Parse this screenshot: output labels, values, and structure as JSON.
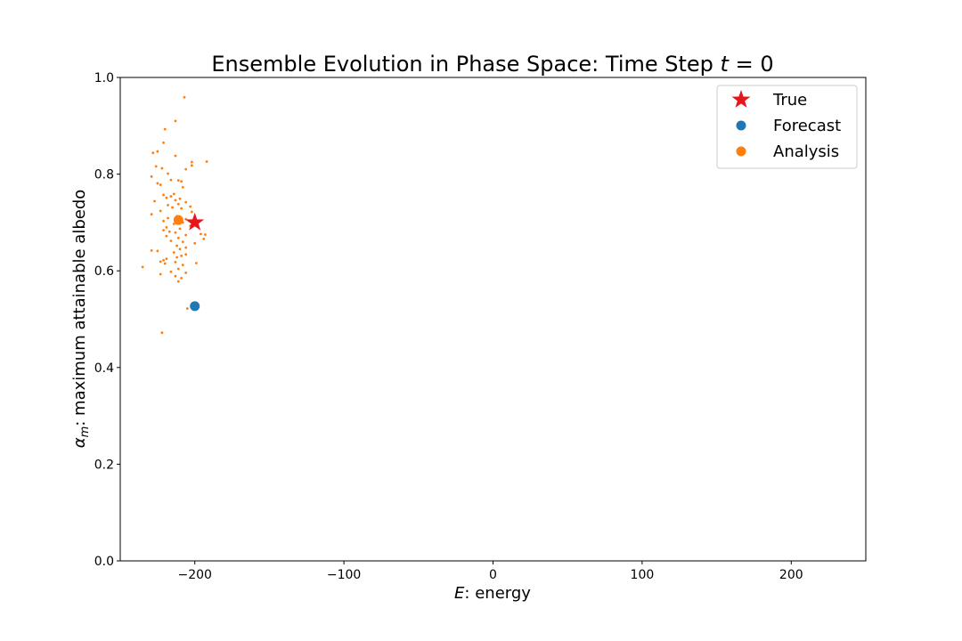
{
  "chart_data": {
    "type": "scatter",
    "title": "Ensemble Evolution in Phase Space: Time Step t = 0",
    "title_parts": {
      "prefix": "Ensemble Evolution in Phase Space: Time Step ",
      "var": "t",
      "suffix": " = 0"
    },
    "xlabel": "E: energy",
    "xlabel_parts": {
      "var": "E",
      "rest": ": energy"
    },
    "ylabel": "αm: maximum attainable albedo",
    "ylabel_parts": {
      "var": "α",
      "sub": "m",
      "rest": ": maximum attainable albedo"
    },
    "xlim": [
      -250,
      250
    ],
    "ylim": [
      0.0,
      1.0
    ],
    "xticks": [
      -200,
      -100,
      0,
      100,
      200
    ],
    "xtick_labels": [
      "−200",
      "−100",
      "0",
      "100",
      "200"
    ],
    "yticks": [
      0.0,
      0.2,
      0.4,
      0.6,
      0.8,
      1.0
    ],
    "ytick_labels": [
      "0.0",
      "0.2",
      "0.4",
      "0.6",
      "0.8",
      "1.0"
    ],
    "grid": false,
    "legend_position": "top-right",
    "colors": {
      "true": "#e8161b",
      "forecast": "#1f77b4",
      "analysis": "#ff7f0e"
    },
    "series": [
      {
        "name": "True",
        "marker": "star",
        "color": "#e8161b",
        "points": [
          {
            "x": -200,
            "y": 0.7
          }
        ]
      },
      {
        "name": "Forecast",
        "marker": "circle",
        "color": "#1f77b4",
        "points": [
          {
            "x": -200,
            "y": 0.527
          }
        ]
      },
      {
        "name": "Analysis",
        "marker": "circle",
        "color": "#ff7f0e",
        "points": [
          {
            "x": -211,
            "y": 0.705
          }
        ]
      },
      {
        "name": "",
        "marker": "dot",
        "color": "#ff7f0e",
        "points": [
          {
            "x": -207,
            "y": 0.959
          },
          {
            "x": -213,
            "y": 0.91
          },
          {
            "x": -220,
            "y": 0.893
          },
          {
            "x": -221,
            "y": 0.865
          },
          {
            "x": -225,
            "y": 0.847
          },
          {
            "x": -228,
            "y": 0.844
          },
          {
            "x": -213,
            "y": 0.838
          },
          {
            "x": -192,
            "y": 0.826
          },
          {
            "x": -202,
            "y": 0.825
          },
          {
            "x": -202,
            "y": 0.818
          },
          {
            "x": -226,
            "y": 0.816
          },
          {
            "x": -222,
            "y": 0.812
          },
          {
            "x": -206,
            "y": 0.81
          },
          {
            "x": -218,
            "y": 0.801
          },
          {
            "x": -229,
            "y": 0.795
          },
          {
            "x": -216,
            "y": 0.788
          },
          {
            "x": -211,
            "y": 0.787
          },
          {
            "x": -209,
            "y": 0.785
          },
          {
            "x": -225,
            "y": 0.781
          },
          {
            "x": -223,
            "y": 0.778
          },
          {
            "x": -208,
            "y": 0.773
          },
          {
            "x": -214,
            "y": 0.759
          },
          {
            "x": -221,
            "y": 0.757
          },
          {
            "x": -216,
            "y": 0.754
          },
          {
            "x": -219,
            "y": 0.751
          },
          {
            "x": -210,
            "y": 0.749
          },
          {
            "x": -213,
            "y": 0.746
          },
          {
            "x": -227,
            "y": 0.744
          },
          {
            "x": -206,
            "y": 0.742
          },
          {
            "x": -211,
            "y": 0.738
          },
          {
            "x": -218,
            "y": 0.736
          },
          {
            "x": -203,
            "y": 0.733
          },
          {
            "x": -215,
            "y": 0.731
          },
          {
            "x": -209,
            "y": 0.729
          },
          {
            "x": -223,
            "y": 0.724
          },
          {
            "x": -202,
            "y": 0.722
          },
          {
            "x": -229,
            "y": 0.717
          },
          {
            "x": -212,
            "y": 0.713
          },
          {
            "x": -218,
            "y": 0.709
          },
          {
            "x": -206,
            "y": 0.707
          },
          {
            "x": -221,
            "y": 0.703
          },
          {
            "x": -208,
            "y": 0.7
          },
          {
            "x": -214,
            "y": 0.697
          },
          {
            "x": -203,
            "y": 0.693
          },
          {
            "x": -219,
            "y": 0.69
          },
          {
            "x": -210,
            "y": 0.687
          },
          {
            "x": -221,
            "y": 0.684
          },
          {
            "x": -217,
            "y": 0.681
          },
          {
            "x": -213,
            "y": 0.679
          },
          {
            "x": -196,
            "y": 0.676
          },
          {
            "x": -193,
            "y": 0.675
          },
          {
            "x": -206,
            "y": 0.674
          },
          {
            "x": -219,
            "y": 0.672
          },
          {
            "x": -211,
            "y": 0.668
          },
          {
            "x": -194,
            "y": 0.666
          },
          {
            "x": -216,
            "y": 0.662
          },
          {
            "x": -208,
            "y": 0.66
          },
          {
            "x": -200,
            "y": 0.657
          },
          {
            "x": -212,
            "y": 0.652
          },
          {
            "x": -206,
            "y": 0.648
          },
          {
            "x": -210,
            "y": 0.645
          },
          {
            "x": -229,
            "y": 0.642
          },
          {
            "x": -225,
            "y": 0.641
          },
          {
            "x": -214,
            "y": 0.638
          },
          {
            "x": -206,
            "y": 0.634
          },
          {
            "x": -209,
            "y": 0.631
          },
          {
            "x": -212,
            "y": 0.628
          },
          {
            "x": -219,
            "y": 0.625
          },
          {
            "x": -221,
            "y": 0.622
          },
          {
            "x": -223,
            "y": 0.619
          },
          {
            "x": -213,
            "y": 0.618
          },
          {
            "x": -199,
            "y": 0.616
          },
          {
            "x": -220,
            "y": 0.615
          },
          {
            "x": -208,
            "y": 0.612
          },
          {
            "x": -235,
            "y": 0.608
          },
          {
            "x": -211,
            "y": 0.604
          },
          {
            "x": -216,
            "y": 0.598
          },
          {
            "x": -206,
            "y": 0.596
          },
          {
            "x": -223,
            "y": 0.593
          },
          {
            "x": -213,
            "y": 0.589
          },
          {
            "x": -209,
            "y": 0.585
          },
          {
            "x": -211,
            "y": 0.578
          },
          {
            "x": -205,
            "y": 0.522
          },
          {
            "x": -222,
            "y": 0.472
          }
        ]
      }
    ]
  }
}
